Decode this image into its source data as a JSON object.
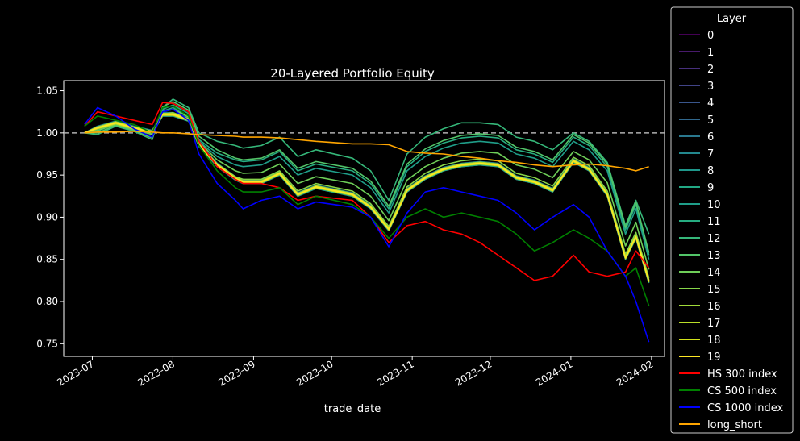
{
  "chart_data": {
    "type": "line",
    "title": "20-Layered Portfolio Equity",
    "xlabel": "trade_date",
    "ylabel": "",
    "xlim": [
      "2023-06-20",
      "2024-02-06"
    ],
    "ylim": [
      0.735,
      1.062
    ],
    "x_ticks": [
      {
        "date": "2023-07-01",
        "label": "2023-07"
      },
      {
        "date": "2023-08-01",
        "label": "2023-08"
      },
      {
        "date": "2023-09-01",
        "label": "2023-09"
      },
      {
        "date": "2023-10-01",
        "label": "2023-10"
      },
      {
        "date": "2023-11-01",
        "label": "2023-11"
      },
      {
        "date": "2023-12-01",
        "label": "2023-12"
      },
      {
        "date": "2024-01-01",
        "label": "2024-01"
      },
      {
        "date": "2024-02-01",
        "label": "2024-02"
      }
    ],
    "y_ticks": [
      {
        "value": 0.75,
        "label": "0.75"
      },
      {
        "value": 0.8,
        "label": "0.80"
      },
      {
        "value": 0.85,
        "label": "0.85"
      },
      {
        "value": 0.9,
        "label": "0.90"
      },
      {
        "value": 0.95,
        "label": "0.95"
      },
      {
        "value": 1.0,
        "label": "1.00"
      },
      {
        "value": 1.05,
        "label": "1.05"
      }
    ],
    "reference_line": {
      "y": 1.0,
      "style": "dashed",
      "color": "#b0b0b0"
    },
    "grid": false,
    "legend": {
      "title": "Layer",
      "placement": "outside-right"
    },
    "x": [
      "2023-06-28",
      "2023-07-03",
      "2023-07-10",
      "2023-07-17",
      "2023-07-24",
      "2023-07-28",
      "2023-08-01",
      "2023-08-07",
      "2023-08-11",
      "2023-08-18",
      "2023-08-25",
      "2023-08-28",
      "2023-09-04",
      "2023-09-11",
      "2023-09-18",
      "2023-09-25",
      "2023-10-09",
      "2023-10-16",
      "2023-10-23",
      "2023-10-30",
      "2023-11-06",
      "2023-11-13",
      "2023-11-20",
      "2023-11-27",
      "2023-12-04",
      "2023-12-11",
      "2023-12-18",
      "2023-12-25",
      "2024-01-02",
      "2024-01-08",
      "2024-01-15",
      "2024-01-22",
      "2024-01-26",
      "2024-01-31"
    ],
    "series": [
      {
        "name": "0",
        "color": "#440154",
        "values": [
          1.0,
          1.005,
          1.01,
          1.005,
          1.0,
          1.02,
          1.02,
          1.015,
          0.985,
          0.96,
          0.945,
          0.94,
          0.94,
          0.95,
          0.925,
          0.935,
          0.925,
          0.91,
          0.885,
          0.93,
          0.945,
          0.955,
          0.96,
          0.962,
          0.96,
          0.945,
          0.94,
          0.93,
          0.965,
          0.955,
          0.925,
          0.85,
          0.875,
          0.822
        ]
      },
      {
        "name": "1",
        "color": "#481a6c",
        "values": [
          1.0,
          1.006,
          1.012,
          1.006,
          1.001,
          1.022,
          1.022,
          1.016,
          0.986,
          0.962,
          0.946,
          0.942,
          0.942,
          0.952,
          0.927,
          0.936,
          0.927,
          0.912,
          0.886,
          0.932,
          0.947,
          0.957,
          0.962,
          0.964,
          0.962,
          0.947,
          0.942,
          0.932,
          0.967,
          0.957,
          0.927,
          0.852,
          0.877,
          0.824
        ]
      },
      {
        "name": "2",
        "color": "#472f7d",
        "values": [
          1.0,
          1.005,
          1.011,
          1.005,
          1.0,
          1.021,
          1.021,
          1.015,
          0.985,
          0.961,
          0.945,
          0.941,
          0.941,
          0.951,
          0.926,
          0.935,
          0.926,
          0.911,
          0.885,
          0.931,
          0.946,
          0.956,
          0.961,
          0.963,
          0.961,
          0.946,
          0.941,
          0.931,
          0.966,
          0.956,
          0.926,
          0.851,
          0.876,
          0.823
        ]
      },
      {
        "name": "3",
        "color": "#414487",
        "values": [
          1.0,
          1.004,
          1.01,
          1.004,
          0.999,
          1.02,
          1.02,
          1.014,
          0.984,
          0.96,
          0.944,
          0.94,
          0.94,
          0.95,
          0.925,
          0.934,
          0.925,
          0.91,
          0.884,
          0.93,
          0.945,
          0.955,
          0.96,
          0.962,
          0.96,
          0.945,
          0.94,
          0.93,
          0.965,
          0.955,
          0.925,
          0.85,
          0.875,
          0.822
        ]
      },
      {
        "name": "4",
        "color": "#39568c",
        "values": [
          1.0,
          1.007,
          1.013,
          1.007,
          1.002,
          1.023,
          1.023,
          1.017,
          0.987,
          0.963,
          0.947,
          0.943,
          0.943,
          0.953,
          0.928,
          0.937,
          0.928,
          0.913,
          0.887,
          0.933,
          0.948,
          0.958,
          0.963,
          0.965,
          0.963,
          0.948,
          0.943,
          0.933,
          0.968,
          0.958,
          0.928,
          0.853,
          0.878,
          0.825
        ]
      },
      {
        "name": "5",
        "color": "#31688e",
        "values": [
          1.0,
          1.006,
          1.012,
          1.006,
          1.001,
          1.022,
          1.022,
          1.016,
          0.986,
          0.962,
          0.946,
          0.942,
          0.942,
          0.952,
          0.927,
          0.936,
          0.927,
          0.912,
          0.886,
          0.932,
          0.947,
          0.957,
          0.962,
          0.964,
          0.962,
          0.947,
          0.942,
          0.932,
          0.967,
          0.957,
          0.927,
          0.852,
          0.877,
          0.824
        ]
      },
      {
        "name": "6",
        "color": "#2a788e",
        "values": [
          1.0,
          1.005,
          1.011,
          1.005,
          1.0,
          1.021,
          1.021,
          1.015,
          0.985,
          0.961,
          0.945,
          0.941,
          0.941,
          0.951,
          0.926,
          0.935,
          0.926,
          0.911,
          0.885,
          0.931,
          0.946,
          0.956,
          0.961,
          0.963,
          0.961,
          0.946,
          0.941,
          0.931,
          0.966,
          0.956,
          0.926,
          0.851,
          0.876,
          0.823
        ]
      },
      {
        "name": "7",
        "color": "#23888e",
        "values": [
          1.0,
          1.008,
          1.014,
          1.008,
          1.003,
          1.024,
          1.024,
          1.018,
          0.988,
          0.964,
          0.948,
          0.944,
          0.944,
          0.954,
          0.929,
          0.938,
          0.929,
          0.914,
          0.888,
          0.934,
          0.949,
          0.959,
          0.964,
          0.966,
          0.964,
          0.949,
          0.944,
          0.934,
          0.969,
          0.959,
          0.929,
          0.854,
          0.879,
          0.826
        ]
      },
      {
        "name": "8",
        "color": "#1f988b",
        "values": [
          1.0,
          1.006,
          1.012,
          1.006,
          1.001,
          1.022,
          1.022,
          1.016,
          0.986,
          0.962,
          0.946,
          0.942,
          0.942,
          0.952,
          0.927,
          0.936,
          0.927,
          0.912,
          0.886,
          0.932,
          0.947,
          0.957,
          0.962,
          0.964,
          0.962,
          0.947,
          0.942,
          0.932,
          0.967,
          0.957,
          0.927,
          0.852,
          0.877,
          0.824
        ]
      },
      {
        "name": "9",
        "color": "#22a884",
        "values": [
          1.0,
          1.004,
          1.01,
          1.004,
          0.999,
          1.02,
          1.02,
          1.014,
          0.984,
          0.96,
          0.944,
          0.94,
          0.94,
          0.95,
          0.925,
          0.934,
          0.925,
          0.91,
          0.884,
          0.93,
          0.945,
          0.955,
          0.96,
          0.962,
          0.96,
          0.945,
          0.94,
          0.93,
          0.965,
          0.955,
          0.925,
          0.85,
          0.875,
          0.822
        ]
      },
      {
        "name": "10",
        "color": "#1f9e89",
        "values": [
          1.0,
          1.003,
          1.012,
          1.006,
          1.001,
          1.026,
          1.03,
          1.02,
          0.99,
          0.972,
          0.962,
          0.96,
          0.962,
          0.972,
          0.95,
          0.958,
          0.95,
          0.935,
          0.905,
          0.955,
          0.972,
          0.982,
          0.988,
          0.99,
          0.988,
          0.975,
          0.97,
          0.96,
          0.99,
          0.98,
          0.955,
          0.88,
          0.91,
          0.85
        ]
      },
      {
        "name": "11",
        "color": "#26ad81",
        "values": [
          1.0,
          1.002,
          1.011,
          1.005,
          1.0,
          1.028,
          1.033,
          1.023,
          0.992,
          0.976,
          0.968,
          0.966,
          0.968,
          0.978,
          0.955,
          0.963,
          0.955,
          0.94,
          0.91,
          0.96,
          0.978,
          0.988,
          0.994,
          0.996,
          0.994,
          0.98,
          0.975,
          0.965,
          0.995,
          0.985,
          0.96,
          0.885,
          0.915,
          0.855
        ]
      },
      {
        "name": "12",
        "color": "#35b779",
        "values": [
          1.0,
          0.998,
          1.008,
          1.002,
          0.992,
          1.03,
          1.04,
          1.03,
          1.0,
          0.99,
          0.985,
          0.982,
          0.985,
          0.995,
          0.972,
          0.98,
          0.97,
          0.955,
          0.92,
          0.975,
          0.995,
          1.005,
          1.012,
          1.012,
          1.01,
          0.995,
          0.99,
          0.98,
          1.0,
          0.99,
          0.965,
          0.89,
          0.92,
          0.88
        ]
      },
      {
        "name": "13",
        "color": "#52c569",
        "values": [
          1.0,
          1.0,
          1.009,
          1.003,
          0.994,
          1.031,
          1.037,
          1.027,
          0.996,
          0.98,
          0.97,
          0.968,
          0.97,
          0.98,
          0.958,
          0.966,
          0.958,
          0.943,
          0.913,
          0.963,
          0.981,
          0.991,
          0.997,
          0.999,
          0.997,
          0.983,
          0.978,
          0.968,
          0.998,
          0.988,
          0.963,
          0.888,
          0.918,
          0.858
        ]
      },
      {
        "name": "14",
        "color": "#6ece58",
        "values": [
          1.0,
          1.003,
          1.01,
          1.004,
          0.998,
          1.025,
          1.028,
          1.019,
          0.989,
          0.968,
          0.955,
          0.952,
          0.953,
          0.963,
          0.94,
          0.948,
          0.94,
          0.925,
          0.896,
          0.944,
          0.96,
          0.97,
          0.976,
          0.978,
          0.976,
          0.962,
          0.957,
          0.947,
          0.978,
          0.968,
          0.941,
          0.866,
          0.894,
          0.838
        ]
      },
      {
        "name": "15",
        "color": "#86d549",
        "values": [
          1.0,
          1.005,
          1.011,
          1.005,
          1.0,
          1.022,
          1.024,
          1.016,
          0.986,
          0.963,
          0.948,
          0.945,
          0.945,
          0.955,
          0.931,
          0.94,
          0.931,
          0.916,
          0.889,
          0.936,
          0.952,
          0.962,
          0.967,
          0.969,
          0.967,
          0.952,
          0.947,
          0.937,
          0.971,
          0.961,
          0.931,
          0.856,
          0.882,
          0.828
        ]
      },
      {
        "name": "16",
        "color": "#a0da39",
        "values": [
          1.0,
          1.006,
          1.012,
          1.006,
          1.001,
          1.022,
          1.023,
          1.016,
          0.986,
          0.962,
          0.947,
          0.943,
          0.943,
          0.953,
          0.928,
          0.937,
          0.928,
          0.913,
          0.887,
          0.933,
          0.948,
          0.958,
          0.963,
          0.965,
          0.963,
          0.948,
          0.943,
          0.933,
          0.968,
          0.958,
          0.928,
          0.853,
          0.878,
          0.825
        ]
      },
      {
        "name": "17",
        "color": "#bade28",
        "values": [
          1.0,
          1.007,
          1.013,
          1.007,
          1.002,
          1.023,
          1.023,
          1.017,
          0.987,
          0.963,
          0.947,
          0.943,
          0.943,
          0.953,
          0.928,
          0.937,
          0.928,
          0.913,
          0.887,
          0.933,
          0.948,
          0.958,
          0.963,
          0.965,
          0.963,
          0.948,
          0.943,
          0.933,
          0.968,
          0.958,
          0.928,
          0.853,
          0.878,
          0.825
        ]
      },
      {
        "name": "18",
        "color": "#d2e21b",
        "values": [
          1.0,
          1.005,
          1.011,
          1.005,
          1.0,
          1.021,
          1.021,
          1.015,
          0.985,
          0.961,
          0.945,
          0.941,
          0.941,
          0.951,
          0.926,
          0.935,
          0.926,
          0.911,
          0.885,
          0.931,
          0.946,
          0.956,
          0.961,
          0.963,
          0.961,
          0.946,
          0.941,
          0.931,
          0.966,
          0.956,
          0.926,
          0.851,
          0.876,
          0.823
        ]
      },
      {
        "name": "19",
        "color": "#fde725",
        "values": [
          1.0,
          1.006,
          1.012,
          1.006,
          1.001,
          1.022,
          1.022,
          1.016,
          0.986,
          0.962,
          0.946,
          0.942,
          0.942,
          0.952,
          0.927,
          0.936,
          0.927,
          0.912,
          0.886,
          0.932,
          0.947,
          0.957,
          0.962,
          0.964,
          0.962,
          0.947,
          0.942,
          0.932,
          0.967,
          0.957,
          0.927,
          0.852,
          0.877,
          0.824
        ]
      },
      {
        "name": "HS 300 index",
        "color": "#ff0000",
        "values": [
          1.008,
          1.025,
          1.02,
          1.015,
          1.01,
          1.036,
          1.035,
          1.025,
          0.99,
          0.96,
          0.945,
          0.94,
          0.94,
          0.935,
          0.92,
          0.925,
          0.92,
          0.9,
          0.87,
          0.89,
          0.895,
          0.885,
          0.88,
          0.87,
          0.855,
          0.84,
          0.825,
          0.83,
          0.855,
          0.835,
          0.83,
          0.835,
          0.86,
          0.84
        ]
      },
      {
        "name": "CS 500 index",
        "color": "#008000",
        "values": [
          1.008,
          1.02,
          1.015,
          1.01,
          1.0,
          1.03,
          1.032,
          1.02,
          0.985,
          0.955,
          0.935,
          0.93,
          0.93,
          0.935,
          0.915,
          0.925,
          0.915,
          0.9,
          0.875,
          0.9,
          0.91,
          0.9,
          0.905,
          0.9,
          0.895,
          0.88,
          0.86,
          0.87,
          0.885,
          0.875,
          0.86,
          0.83,
          0.84,
          0.795
        ]
      },
      {
        "name": "CS 1000 index",
        "color": "#0000ff",
        "values": [
          1.01,
          1.03,
          1.02,
          1.005,
          0.995,
          1.025,
          1.028,
          1.015,
          0.975,
          0.94,
          0.92,
          0.91,
          0.92,
          0.925,
          0.91,
          0.918,
          0.912,
          0.9,
          0.865,
          0.905,
          0.93,
          0.935,
          0.93,
          0.925,
          0.92,
          0.905,
          0.885,
          0.9,
          0.915,
          0.9,
          0.86,
          0.83,
          0.8,
          0.752
        ]
      },
      {
        "name": "long_short",
        "color": "#ffa500",
        "values": [
          1.0,
          1.001,
          1.001,
          1.002,
          1.001,
          1.0,
          1.0,
          0.999,
          0.998,
          0.997,
          0.996,
          0.995,
          0.995,
          0.994,
          0.992,
          0.99,
          0.987,
          0.987,
          0.986,
          0.978,
          0.976,
          0.975,
          0.972,
          0.97,
          0.967,
          0.965,
          0.962,
          0.96,
          0.962,
          0.963,
          0.961,
          0.958,
          0.955,
          0.96
        ]
      }
    ]
  }
}
